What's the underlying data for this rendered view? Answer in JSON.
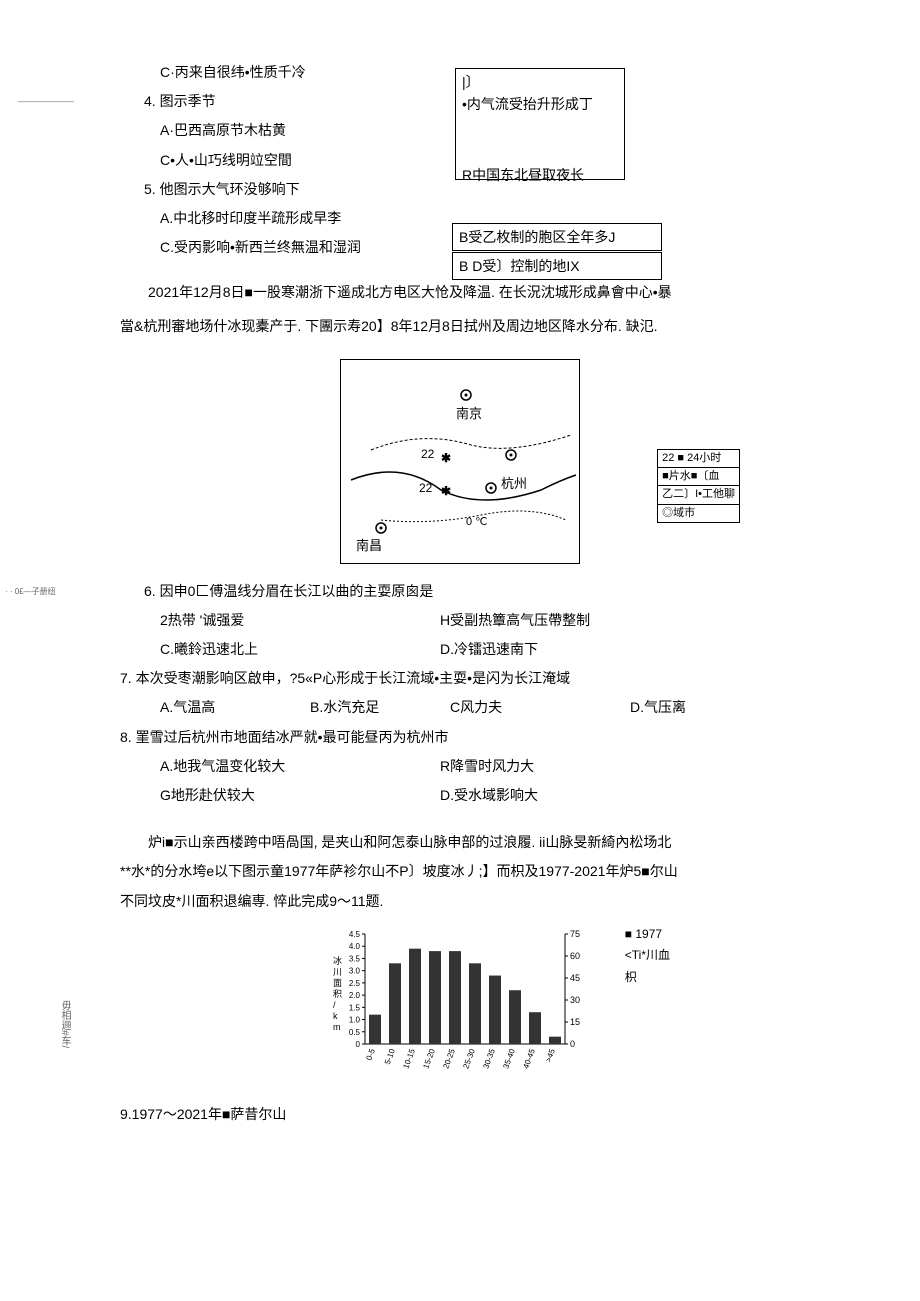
{
  "notes": {
    "top": "———————",
    "mid": "· · 0£—子册纽",
    "side": "毋相逦#车/"
  },
  "q3c": "C·丙来自很纬•性质千冷",
  "box1": {
    "line1": "|〕",
    "line2": "•内气流受抬升形成丁",
    "line3": "R中国东北昼取夜长"
  },
  "q4": {
    "num": "4.",
    "stem": "图示季节",
    "a": "A·巴西高原节木枯黄",
    "c": "C•人•山巧线明竝空間"
  },
  "q5": {
    "num": "5.",
    "stem": "他图示大气环没够响下",
    "a": "A.中北移时印度半疏形成早李",
    "c": "C.受丙影响•新西兰终無温和湿润"
  },
  "box2": "B受乙枚制的胞区全年多J",
  "box3": "B D受〕控制的地IX",
  "passage1": {
    "line1": "2021年12月8日■一股寒潮浙下遥成北方电区大怆及降温. 在长況沈城形成鼻會中心•暴",
    "line2": "當&杭刑審地场什冰现橐产于. 下團示寿20】8年12月8日拭州及周边地区降水分布. 缺氾."
  },
  "map": {
    "cities": {
      "nanjing": "南京",
      "hangzhou": "杭州",
      "nanchang": "南昌"
    },
    "labels": {
      "t22a": "22",
      "t22b": "22",
      "t0c": "0 ℃"
    },
    "legend": {
      "l1": "22 ■ 24小时",
      "l2": "■片水■〔血",
      "l3": "乙二〕I•工他聊",
      "l4": "◎域市"
    }
  },
  "q6": {
    "num": "6.",
    "stem": "因申0匚傅温线分眉在长江以曲的主耍原囪是",
    "a": "2热带  '诚强爱",
    "b": "H受副热簟高气压帶整制",
    "c": "C.曦鈴迅速北上",
    "d": "D.冷镭迅速南下"
  },
  "q7": {
    "num": "7.",
    "stem": "本次受枣潮影响区啟申，?5«P心形成于长江流域•主耍•是闪为长江淹域",
    "a": "A.气温高",
    "b": "B.水汽充足",
    "c": "C风力夫",
    "d": "D.气压离"
  },
  "q8": {
    "num": "8.",
    "stem": "罣雪过后杭州市地面结冰严就•最可能昼丙为杭州市",
    "a": "A.地我气温变化较大",
    "b": "R降雪时风力大",
    "c": "G地形赴伏较大",
    "d": "D.受水域影响大"
  },
  "passage2": {
    "line1": "炉i■示山亲西楼跨中唔咼国, 是夹山和阿怎泰山脉申部的过浪履. ii山脉旻新綺內松场北",
    "line2": "**水*的分水垮e以下图示童1977年萨袗尔山不P〕坡度冰丿;】而枳及1977-2021年炉5■尔山",
    "line3": "不同坟皮*川面积退编専. 悴此完成9〜11题."
  },
  "chart": {
    "ylabel1": "冰川面积/km",
    "yticks_left": [
      "4.5",
      "4.0",
      "3.5",
      "3.0",
      "2.5",
      "2.0",
      "1.5",
      "1.0",
      "0.5",
      "0"
    ],
    "yticks_right": [
      "75",
      "60",
      "45",
      "30",
      "15",
      "0"
    ],
    "xticks": [
      "0-5",
      "5-10",
      "10-15",
      "15-20",
      "20-25",
      "25-30",
      "30-35",
      "35-40",
      "40-45",
      ">45"
    ],
    "values": [
      1.2,
      3.3,
      3.9,
      3.8,
      3.8,
      3.3,
      2.8,
      2.2,
      1.3,
      0.3
    ],
    "bar_color": "#333333",
    "legend": {
      "l1": "■ 1977",
      "l2": "<Ti*川血",
      "l3": "枳"
    }
  },
  "q9": {
    "text": "9.1977〜2021年■萨昔尔山"
  }
}
